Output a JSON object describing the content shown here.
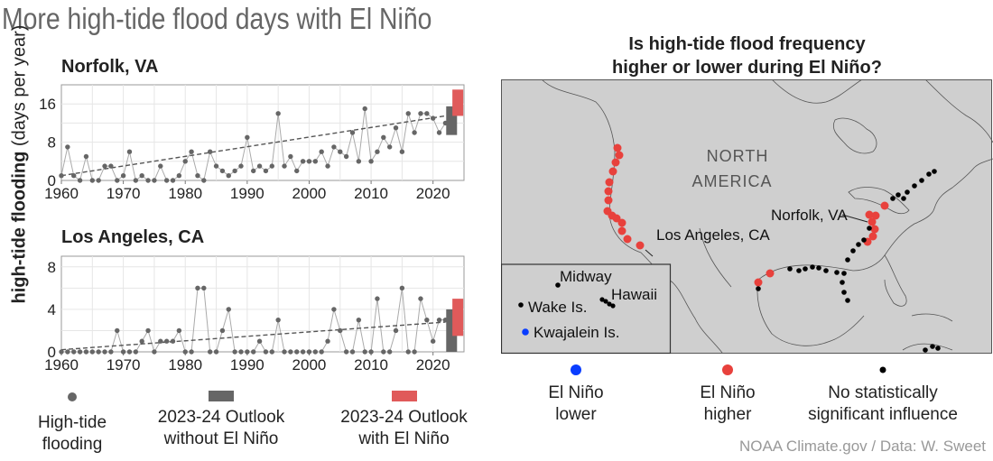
{
  "title": "More high-tide flood days with El Niño",
  "y_axis_label_bold": "high-tide flooding",
  "y_axis_label_unit": "(days per year)",
  "map_title_line1": "Is high-tide flood frequency",
  "map_title_line2": "higher or lower during El Niño?",
  "map_labels": {
    "continent_line1": "NORTH",
    "continent_line2": "AMERICA",
    "norfolk": "Norfolk, VA",
    "los_angeles": "Los Angeles, CA",
    "midway": "Midway",
    "hawaii": "Hawaii",
    "wake": "Wake Is.",
    "kwajalein": "Kwajalein Is."
  },
  "legend_left": [
    {
      "line1": "High-tide",
      "line2": "flooding",
      "color": "#666666",
      "symbol": "dot"
    },
    {
      "line1": "2023-24 Outlook",
      "line2": "without El Niño",
      "color": "#666666",
      "symbol": "bar"
    },
    {
      "line1": "2023-24 Outlook",
      "line2": "with El Niño",
      "color": "#e05a5a",
      "symbol": "bar"
    }
  ],
  "legend_right": [
    {
      "line1": "El Niño",
      "line2": "lower",
      "color": "#0a3dff"
    },
    {
      "line1": "El Niño",
      "line2": "higher",
      "color": "#e8413c"
    },
    {
      "line1": "No statistically",
      "line2": "significant influence",
      "color": "#000000"
    }
  ],
  "credit": "NOAA Climate.gov / Data: W. Sweet",
  "colors": {
    "observed": "#666666",
    "outlook_without": "#666666",
    "outlook_with": "#e05a5a",
    "map_bg": "#cfcfcf",
    "red": "#e8413c",
    "blue": "#0a3dff"
  },
  "chart_data": [
    {
      "type": "line",
      "title": "Norfolk, VA",
      "xlim": [
        1960,
        2025
      ],
      "ylim": [
        0,
        20
      ],
      "x_ticks": [
        1960,
        1970,
        1980,
        1990,
        2000,
        2010,
        2020
      ],
      "y_ticks": [
        0,
        8,
        16
      ],
      "grid": true,
      "x": [
        1960,
        1961,
        1962,
        1963,
        1964,
        1965,
        1966,
        1967,
        1968,
        1969,
        1970,
        1971,
        1972,
        1973,
        1974,
        1975,
        1976,
        1977,
        1978,
        1979,
        1980,
        1981,
        1982,
        1983,
        1984,
        1985,
        1986,
        1987,
        1988,
        1989,
        1990,
        1991,
        1992,
        1993,
        1994,
        1995,
        1996,
        1997,
        1998,
        1999,
        2000,
        2001,
        2002,
        2003,
        2004,
        2005,
        2006,
        2007,
        2008,
        2009,
        2010,
        2011,
        2012,
        2013,
        2014,
        2015,
        2016,
        2017,
        2018,
        2019,
        2020,
        2021,
        2022
      ],
      "series": [
        {
          "values": [
            1,
            7,
            1,
            0,
            5,
            0,
            0,
            3,
            3,
            0,
            1,
            6,
            0,
            1,
            0,
            0,
            3,
            0,
            0,
            1,
            4,
            6,
            1,
            0,
            6,
            3,
            2,
            1,
            2,
            3,
            9,
            2,
            3,
            2,
            3,
            14,
            3,
            5,
            2,
            4,
            4,
            4,
            6,
            3,
            7,
            6,
            5,
            10,
            4,
            15,
            4,
            6,
            9,
            7,
            11,
            6,
            14,
            10,
            14,
            14,
            13,
            10,
            12
          ]
        }
      ],
      "trend": {
        "x_start": 1960,
        "y_start": 1,
        "x_end": 2022,
        "y_end": 13.5
      },
      "outlook_without": {
        "x": 2023,
        "low": 9.5,
        "high": 15.5
      },
      "outlook_with": {
        "x": 2024,
        "low": 13.5,
        "high": 19
      }
    },
    {
      "type": "line",
      "title": "Los Angeles, CA",
      "xlim": [
        1960,
        2025
      ],
      "ylim": [
        0,
        9
      ],
      "x_ticks": [
        1960,
        1970,
        1980,
        1990,
        2000,
        2010,
        2020
      ],
      "y_ticks": [
        0,
        4,
        8
      ],
      "grid": true,
      "x": [
        1960,
        1961,
        1962,
        1963,
        1964,
        1965,
        1966,
        1967,
        1968,
        1969,
        1970,
        1971,
        1972,
        1973,
        1974,
        1975,
        1976,
        1977,
        1978,
        1979,
        1980,
        1981,
        1982,
        1983,
        1984,
        1985,
        1986,
        1987,
        1988,
        1989,
        1990,
        1991,
        1992,
        1993,
        1994,
        1995,
        1996,
        1997,
        1998,
        1999,
        2000,
        2001,
        2002,
        2003,
        2004,
        2005,
        2006,
        2007,
        2008,
        2009,
        2010,
        2011,
        2012,
        2013,
        2014,
        2015,
        2016,
        2017,
        2018,
        2019,
        2020,
        2021,
        2022
      ],
      "series": [
        {
          "values": [
            0,
            0,
            0,
            0,
            0,
            0,
            0,
            0,
            0,
            2,
            0,
            0,
            0,
            1,
            2,
            0,
            1,
            1,
            1,
            2,
            0,
            0,
            6,
            6,
            0,
            0,
            2,
            4,
            0,
            0,
            0,
            0,
            1,
            0,
            0,
            3,
            0,
            0,
            0,
            0,
            0,
            0,
            0,
            1,
            4,
            2,
            0,
            0,
            3,
            0,
            0,
            5,
            0,
            0,
            2,
            6,
            0,
            0,
            5,
            3,
            1,
            3,
            3
          ]
        }
      ],
      "trend": {
        "x_start": 1960,
        "y_start": 0.2,
        "x_end": 2022,
        "y_end": 2.8
      },
      "outlook_without": {
        "x": 2023,
        "low": 0,
        "high": 4
      },
      "outlook_with": {
        "x": 2024,
        "low": 1.5,
        "high": 5
      }
    }
  ]
}
